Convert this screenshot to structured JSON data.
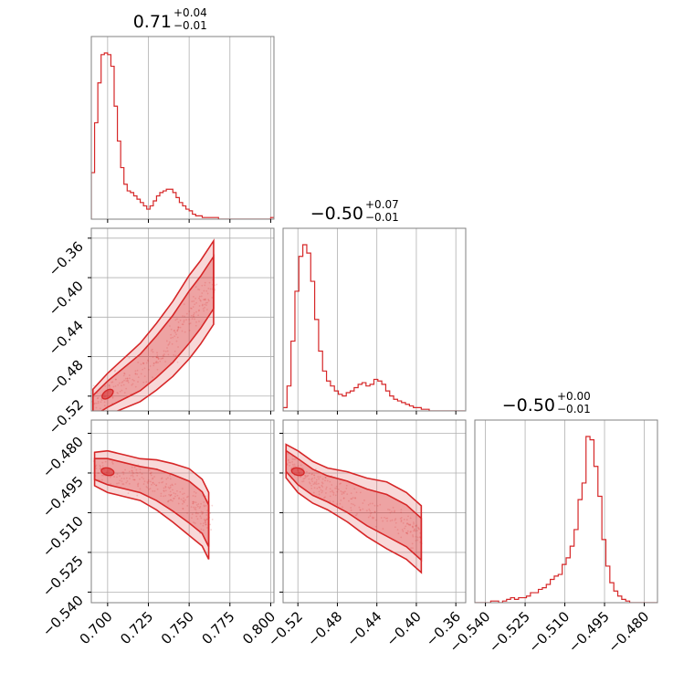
{
  "chart_data": [
    {
      "type": "corner",
      "line_color": "#d62728",
      "fill_color": "#d62728",
      "grid": true,
      "parameters": [
        {
          "title_value": "0.71",
          "title_upper": "+0.04",
          "title_lower": "−0.01",
          "range": [
            0.69,
            0.802
          ],
          "ticks": [
            "0.700",
            "0.725",
            "0.750",
            "0.775",
            "0.800"
          ],
          "tick_values": [
            0.7,
            0.725,
            0.75,
            0.775,
            0.8
          ]
        },
        {
          "title_value": "−0.50",
          "title_upper": "+0.07",
          "title_lower": "−0.01",
          "range": [
            -0.535,
            -0.35
          ],
          "ticks": [
            "−0.52",
            "−0.48",
            "−0.44",
            "−0.40",
            "−0.36"
          ],
          "tick_values": [
            -0.52,
            -0.48,
            -0.44,
            -0.4,
            -0.36
          ]
        },
        {
          "title_value": "−0.50",
          "title_upper": "+0.00",
          "title_lower": "−0.01",
          "range": [
            -0.544,
            -0.475
          ],
          "ticks": [
            "−0.540",
            "−0.525",
            "−0.510",
            "−0.495",
            "−0.480"
          ],
          "tick_values": [
            -0.54,
            -0.525,
            -0.51,
            -0.495,
            -0.48
          ]
        }
      ],
      "histograms": [
        {
          "bin_edges": [
            0.69,
            0.692,
            0.694,
            0.696,
            0.698,
            0.7,
            0.702,
            0.704,
            0.706,
            0.708,
            0.71,
            0.712,
            0.714,
            0.716,
            0.718,
            0.72,
            0.722,
            0.724,
            0.726,
            0.728,
            0.73,
            0.732,
            0.734,
            0.736,
            0.738,
            0.74,
            0.742,
            0.744,
            0.746,
            0.748,
            0.75,
            0.752,
            0.754,
            0.756,
            0.758,
            0.76,
            0.762,
            0.764,
            0.766,
            0.768,
            0.77,
            0.772,
            0.774,
            0.776,
            0.778,
            0.78,
            0.782,
            0.784,
            0.786,
            0.788,
            0.79,
            0.792,
            0.794,
            0.796,
            0.798,
            0.8,
            0.802
          ],
          "counts": [
            0.28,
            0.58,
            0.82,
            0.99,
            1.0,
            0.99,
            0.92,
            0.68,
            0.47,
            0.31,
            0.21,
            0.17,
            0.16,
            0.14,
            0.12,
            0.1,
            0.08,
            0.06,
            0.08,
            0.11,
            0.14,
            0.16,
            0.17,
            0.18,
            0.18,
            0.16,
            0.13,
            0.1,
            0.08,
            0.06,
            0.05,
            0.03,
            0.02,
            0.02,
            0.01,
            0.01,
            0.01,
            0.01,
            0.01,
            0.0,
            0.0,
            0.0,
            0.0,
            0.0,
            0.0,
            0.0,
            0.0,
            0.0,
            0.0,
            0.0,
            0.0,
            0.0,
            0.0,
            0.0,
            0.0,
            0.01
          ]
        },
        {
          "bin_edges": [
            -0.535,
            -0.531,
            -0.527,
            -0.523,
            -0.519,
            -0.515,
            -0.511,
            -0.507,
            -0.503,
            -0.499,
            -0.495,
            -0.491,
            -0.487,
            -0.483,
            -0.479,
            -0.475,
            -0.471,
            -0.467,
            -0.463,
            -0.459,
            -0.455,
            -0.451,
            -0.447,
            -0.443,
            -0.439,
            -0.435,
            -0.431,
            -0.427,
            -0.423,
            -0.419,
            -0.415,
            -0.411,
            -0.407,
            -0.403,
            -0.399,
            -0.395,
            -0.391,
            -0.387,
            -0.383,
            -0.379,
            -0.375,
            -0.371,
            -0.367,
            -0.363,
            -0.359,
            -0.355,
            -0.351
          ],
          "counts": [
            0.02,
            0.15,
            0.42,
            0.72,
            0.93,
            1.0,
            0.95,
            0.78,
            0.55,
            0.36,
            0.24,
            0.18,
            0.15,
            0.12,
            0.1,
            0.09,
            0.11,
            0.12,
            0.14,
            0.16,
            0.17,
            0.15,
            0.16,
            0.19,
            0.18,
            0.16,
            0.12,
            0.09,
            0.07,
            0.06,
            0.05,
            0.04,
            0.03,
            0.02,
            0.02,
            0.01,
            0.01,
            0.0,
            0.0,
            0.0,
            0.0,
            0.0,
            0.0,
            0.0,
            0.0,
            0.0
          ]
        },
        {
          "bin_edges": [
            -0.544,
            -0.5425,
            -0.541,
            -0.5395,
            -0.538,
            -0.5365,
            -0.535,
            -0.5335,
            -0.532,
            -0.5305,
            -0.529,
            -0.5275,
            -0.526,
            -0.5245,
            -0.523,
            -0.5215,
            -0.52,
            -0.5185,
            -0.517,
            -0.5155,
            -0.514,
            -0.5125,
            -0.511,
            -0.5095,
            -0.508,
            -0.5065,
            -0.505,
            -0.5035,
            -0.502,
            -0.5005,
            -0.499,
            -0.4975,
            -0.496,
            -0.4945,
            -0.493,
            -0.4915,
            -0.49,
            -0.4885,
            -0.487,
            -0.4855,
            -0.484,
            -0.4825,
            -0.481,
            -0.4795,
            -0.478,
            -0.4765,
            -0.475
          ],
          "counts": [
            0.0,
            0.0,
            0.0,
            0.0,
            0.01,
            0.01,
            0.0,
            0.01,
            0.02,
            0.03,
            0.02,
            0.03,
            0.03,
            0.04,
            0.06,
            0.06,
            0.08,
            0.09,
            0.11,
            0.14,
            0.16,
            0.17,
            0.23,
            0.27,
            0.34,
            0.44,
            0.62,
            0.72,
            1.0,
            0.98,
            0.82,
            0.64,
            0.38,
            0.22,
            0.12,
            0.07,
            0.04,
            0.02,
            0.01,
            0.0,
            0.0,
            0.0,
            0.0,
            0.0,
            0.0,
            0.0
          ]
        }
      ],
      "pairs": [
        {
          "row": 1,
          "col": 0,
          "ridge": [
            [
              0.691,
              -0.53
            ],
            [
              0.7,
              -0.518
            ],
            [
              0.71,
              -0.507
            ],
            [
              0.72,
              -0.496
            ],
            [
              0.73,
              -0.48
            ],
            [
              0.74,
              -0.462
            ],
            [
              0.75,
              -0.44
            ],
            [
              0.757,
              -0.425
            ],
            [
              0.765,
              -0.405
            ]
          ],
          "widths": [
            0.004,
            0.005,
            0.006,
            0.007,
            0.008,
            0.009,
            0.01,
            0.01,
            0.01
          ],
          "scatter_spread": 0.008
        },
        {
          "row": 2,
          "col": 0,
          "ridge": [
            [
              0.692,
              -0.4935
            ],
            [
              0.7,
              -0.4945
            ],
            [
              0.71,
              -0.496
            ],
            [
              0.72,
              -0.4975
            ],
            [
              0.73,
              -0.4995
            ],
            [
              0.74,
              -0.5025
            ],
            [
              0.75,
              -0.506
            ],
            [
              0.758,
              -0.51
            ],
            [
              0.762,
              -0.515
            ]
          ],
          "widths": [
            0.004,
            0.005,
            0.005,
            0.005,
            0.006,
            0.007,
            0.008,
            0.008,
            0.008
          ],
          "scatter_spread": 0.007
        },
        {
          "row": 2,
          "col": 1,
          "ridge": [
            [
              -0.532,
              -0.4905
            ],
            [
              -0.52,
              -0.4945
            ],
            [
              -0.505,
              -0.4985
            ],
            [
              -0.49,
              -0.501
            ],
            [
              -0.47,
              -0.504
            ],
            [
              -0.45,
              -0.508
            ],
            [
              -0.43,
              -0.511
            ],
            [
              -0.41,
              -0.515
            ],
            [
              -0.395,
              -0.52
            ]
          ],
          "widths": [
            0.004,
            0.005,
            0.005,
            0.005,
            0.006,
            0.007,
            0.008,
            0.008,
            0.008
          ],
          "scatter_spread": 0.007
        }
      ]
    }
  ]
}
